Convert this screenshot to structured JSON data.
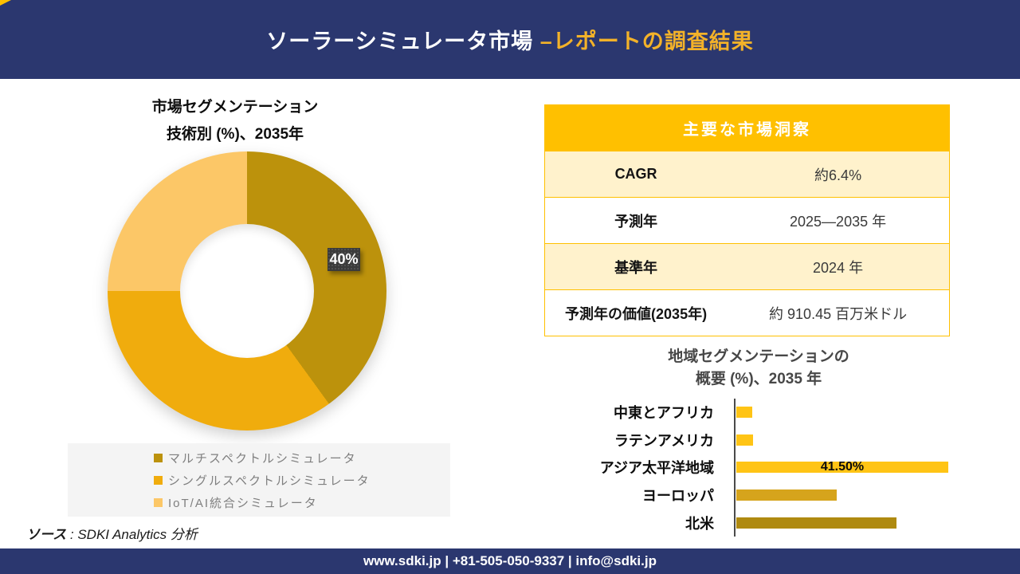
{
  "header": {
    "title_white": "ソーラーシミュレータ市場 ",
    "title_accent": "–レポートの調査結果"
  },
  "donut_section": {
    "title_line1": "市場セグメンテーション",
    "title_line2": "技術別 (%)、2035年",
    "callout_label": "40%"
  },
  "insights_table": {
    "header": "主要な市場洞察",
    "rows": [
      {
        "label": "CAGR",
        "value": "約6.4%"
      },
      {
        "label": "予測年",
        "value": "2025—2035 年"
      },
      {
        "label": "基準年",
        "value": "2024 年"
      },
      {
        "label": "予測年の価値(2035年)",
        "value": "約 910.45 百万米ドル"
      }
    ]
  },
  "bar_section": {
    "title_line1": "地域セグメンテーションの",
    "title_line2": "概要 (%)、2035 年"
  },
  "source_note": {
    "prefix": "ソース",
    "text": " : SDKI Analytics 分析"
  },
  "footer": {
    "contact": "www.sdki.jp | +81-505-050-9337 | info@sdki.jp"
  },
  "colors": {
    "navy": "#2B376F",
    "header_accent": "#F3B229",
    "table_gold": "#FFC000",
    "table_cream": "#FFF2CC",
    "callout_bg": "#3B3B3B"
  },
  "chart_data": [
    {
      "type": "pie",
      "subtype": "donut",
      "title": "市場セグメンテーション 技術別 (%)、2035年",
      "start_angle_deg": 0,
      "direction": "clockwise",
      "legend_position": "bottom",
      "segments": [
        {
          "label": "マルチスペクトルシミュレータ",
          "value": 40,
          "color": "#BC920C",
          "data_label": "40%"
        },
        {
          "label": "シングルスペクトルシミュレータ",
          "value": 35,
          "color": "#F0AC0D",
          "data_label": ""
        },
        {
          "label": "IoT/AI統合シミュレータ",
          "value": 25,
          "color": "#FCC767",
          "data_label": ""
        }
      ]
    },
    {
      "type": "bar",
      "orientation": "horizontal",
      "title": "地域セグメンテーションの 概要 (%)、2035 年",
      "categories": [
        "中東とアフリカ",
        "ラテンアメリカ",
        "アジア太平洋地域",
        "ヨーロッパ",
        "北米"
      ],
      "values": [
        3.1,
        3.3,
        41.5,
        19.7,
        31.4
      ],
      "data_labels": [
        "",
        "",
        "41.50%",
        "",
        ""
      ],
      "colors": [
        "#FFC415",
        "#FFC415",
        "#FFC415",
        "#D6A41C",
        "#AF8A10"
      ],
      "xlim": [
        0,
        43
      ],
      "grid": false,
      "legend_position": "none"
    }
  ]
}
